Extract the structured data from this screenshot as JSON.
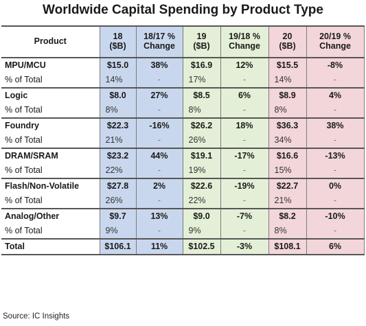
{
  "title": "Worldwide Capital Spending by Product Type",
  "source": "Source: IC Insights",
  "colors": {
    "col18": "#c9d7ee",
    "col19": "#e4efd7",
    "col20": "#f3d6d9"
  },
  "chart_data": {
    "type": "table",
    "title": "Worldwide Capital Spending by Product Type",
    "columns": [
      {
        "header": "Product"
      },
      {
        "header": "18 ($B)"
      },
      {
        "header": "18/17 % Change"
      },
      {
        "header": "19 ($B)"
      },
      {
        "header": "19/18 % Change"
      },
      {
        "header": "20 ($B)"
      },
      {
        "header": "20/19 % Change"
      }
    ],
    "header_lines": [
      [
        "Product"
      ],
      [
        "18",
        "($B)"
      ],
      [
        "18/17 %",
        "Change"
      ],
      [
        "19",
        "($B)"
      ],
      [
        "19/18 %",
        "Change"
      ],
      [
        "20",
        "($B)"
      ],
      [
        "20/19 %",
        "Change"
      ]
    ],
    "rows": [
      [
        "MPU/MCU",
        "$15.0",
        "38%",
        "$16.9",
        "12%",
        "$15.5",
        "-8%"
      ],
      [
        "% of Total",
        "14%",
        "-",
        "17%",
        "-",
        "14%",
        "-"
      ],
      [
        "Logic",
        "$8.0",
        "27%",
        "$8.5",
        "6%",
        "$8.9",
        "4%"
      ],
      [
        "% of Total",
        "8%",
        "-",
        "8%",
        "-",
        "8%",
        "-"
      ],
      [
        "Foundry",
        "$22.3",
        "-16%",
        "$26.2",
        "18%",
        "$36.3",
        "38%"
      ],
      [
        "% of Total",
        "21%",
        "-",
        "26%",
        "-",
        "34%",
        "-"
      ],
      [
        "DRAM/SRAM",
        "$23.2",
        "44%",
        "$19.1",
        "-17%",
        "$16.6",
        "-13%"
      ],
      [
        "% of Total",
        "22%",
        "-",
        "19%",
        "-",
        "15%",
        "-"
      ],
      [
        "Flash/Non-Volatile",
        "$27.8",
        "2%",
        "$22.6",
        "-19%",
        "$22.7",
        "0%"
      ],
      [
        "% of Total",
        "26%",
        "-",
        "22%",
        "-",
        "21%",
        "-"
      ],
      [
        "Analog/Other",
        "$9.7",
        "13%",
        "$9.0",
        "-7%",
        "$8.2",
        "-10%"
      ],
      [
        "% of Total",
        "9%",
        "-",
        "9%",
        "-",
        "8%",
        "-"
      ],
      [
        "Total",
        "$106.1",
        "11%",
        "$102.5",
        "-3%",
        "$108.1",
        "6%"
      ]
    ]
  }
}
